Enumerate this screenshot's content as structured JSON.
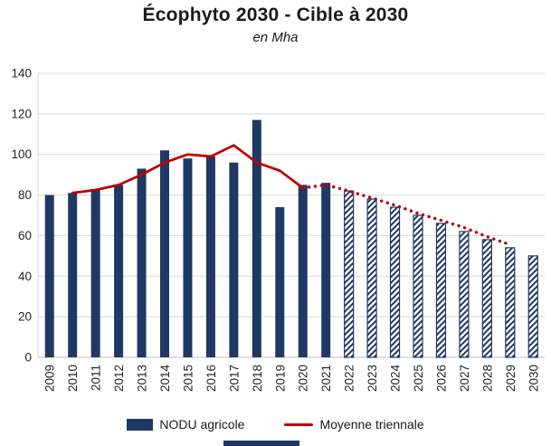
{
  "title": "Écophyto 2030 - Cible à 2030",
  "subtitle": "en Mha",
  "legend": {
    "bars_label": "NODU agricole",
    "line_label": "Moyenne triennale"
  },
  "colors": {
    "bar": "#1F3864",
    "line": "#C00000",
    "grid": "#D9D9D9",
    "axis_line": "#BFBFBF",
    "axis_text": "#262626",
    "title_text": "#1A1A1A"
  },
  "chart_data": {
    "type": "bar",
    "title": "Écophyto 2030 - Cible à 2030",
    "subtitle_unit": "en Mha",
    "ylim": [
      0,
      140
    ],
    "ytick_step": 20,
    "grid": true,
    "legend_position": "bottom",
    "x_label_rotation": -90,
    "categories": [
      "2009",
      "2010",
      "2011",
      "2012",
      "2013",
      "2014",
      "2015",
      "2016",
      "2017",
      "2018",
      "2019",
      "2020",
      "2021",
      "2022",
      "2023",
      "2024",
      "2025",
      "2026",
      "2027",
      "2028",
      "2029",
      "2030"
    ],
    "series": [
      {
        "name": "NODU agricole",
        "type": "bar",
        "values": [
          80,
          81,
          83,
          85,
          93,
          102,
          98,
          99,
          96,
          117,
          74,
          85,
          86,
          82,
          78,
          74,
          70,
          66,
          62,
          58,
          54,
          50
        ],
        "hatched_from_index": 13
      },
      {
        "name": "Moyenne triennale",
        "type": "line",
        "values": [
          null,
          81,
          82.5,
          85,
          90,
          96,
          100,
          99,
          104.5,
          96,
          92,
          83.5,
          85,
          82,
          78.5,
          75,
          71,
          67.5,
          64,
          59.5,
          55.5,
          null
        ],
        "solid_until_index": 11
      }
    ]
  }
}
